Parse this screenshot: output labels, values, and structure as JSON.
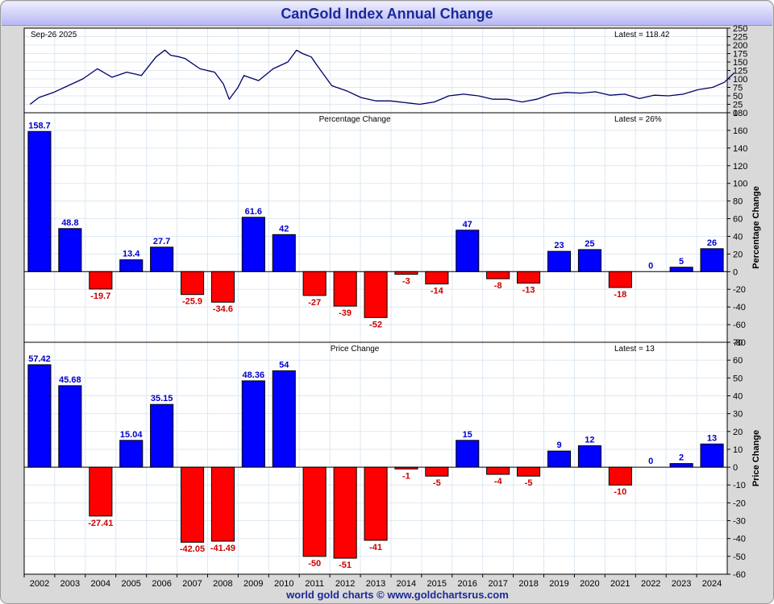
{
  "title": "CanGold Index Annual Change",
  "footer": "world gold charts © www.goldchartsrus.com",
  "colors": {
    "positive": "#0000ff",
    "negative": "#ff0000",
    "line": "#000066",
    "title_text": "#1a2a99",
    "label_positive": "#0000cc",
    "label_negative": "#cc0000"
  },
  "chart_data": [
    {
      "type": "line",
      "date_label": "Sep-26  2025",
      "latest_label": "Latest = 118.42",
      "ylim": [
        0,
        250
      ],
      "y_ticks": [
        0,
        25,
        50,
        75,
        100,
        125,
        150,
        175,
        200,
        225,
        250
      ],
      "x": [
        2001.7,
        2002.0,
        2002.5,
        2003.0,
        2003.5,
        2004.0,
        2004.5,
        2005.0,
        2005.5,
        2006.0,
        2006.3,
        2006.5,
        2006.8,
        2007.0,
        2007.5,
        2008.0,
        2008.3,
        2008.5,
        2008.8,
        2009.0,
        2009.5,
        2010.0,
        2010.5,
        2010.8,
        2011.0,
        2011.3,
        2011.5,
        2012.0,
        2012.5,
        2013.0,
        2013.5,
        2014.0,
        2014.5,
        2015.0,
        2015.5,
        2016.0,
        2016.5,
        2017.0,
        2017.5,
        2018.0,
        2018.5,
        2019.0,
        2019.5,
        2020.0,
        2020.5,
        2021.0,
        2021.5,
        2022.0,
        2022.5,
        2023.0,
        2023.5,
        2024.0,
        2024.5,
        2025.0,
        2025.4,
        2025.74
      ],
      "y": [
        25,
        45,
        60,
        80,
        100,
        130,
        105,
        120,
        110,
        165,
        185,
        170,
        165,
        160,
        130,
        120,
        85,
        40,
        75,
        110,
        95,
        130,
        150,
        185,
        175,
        165,
        140,
        80,
        65,
        45,
        35,
        35,
        30,
        25,
        32,
        50,
        55,
        50,
        40,
        40,
        32,
        40,
        55,
        60,
        58,
        62,
        52,
        55,
        42,
        52,
        50,
        55,
        68,
        75,
        90,
        118
      ]
    },
    {
      "type": "bar",
      "panel_label": "Percentage Change",
      "latest_label": "Latest = 26%",
      "ylabel": "Percentage Change",
      "ylim": [
        -80,
        180
      ],
      "y_ticks": [
        -80,
        -60,
        -40,
        -20,
        0,
        20,
        40,
        60,
        80,
        100,
        120,
        140,
        160,
        180
      ],
      "categories": [
        "2002",
        "2003",
        "2004",
        "2005",
        "2006",
        "2007",
        "2008",
        "2009",
        "2010",
        "2011",
        "2012",
        "2013",
        "2014",
        "2015",
        "2016",
        "2017",
        "2018",
        "2019",
        "2020",
        "2021",
        "2022",
        "2023",
        "2024"
      ],
      "values": [
        158.7,
        48.8,
        -19.7,
        13.4,
        27.7,
        -25.9,
        -34.6,
        61.6,
        42,
        -27,
        -39,
        -52,
        -3,
        -14,
        47,
        -8,
        -13,
        23,
        25,
        -18,
        0,
        5,
        26
      ],
      "labels": [
        "158.7",
        "48.8",
        "-19.7",
        "13.4",
        "27.7",
        "-25.9",
        "-34.6",
        "61.6",
        "42",
        "-27",
        "-39",
        "-52",
        "-3",
        "-14",
        "47",
        "-8",
        "-13",
        "23",
        "25",
        "-18",
        "0",
        "5",
        "26"
      ]
    },
    {
      "type": "bar",
      "panel_label": "Price Change",
      "latest_label": "Latest = 13",
      "ylabel": "Price Change",
      "ylim": [
        -60,
        70
      ],
      "y_ticks": [
        -60,
        -50,
        -40,
        -30,
        -20,
        -10,
        0,
        10,
        20,
        30,
        40,
        50,
        60,
        70
      ],
      "categories": [
        "2002",
        "2003",
        "2004",
        "2005",
        "2006",
        "2007",
        "2008",
        "2009",
        "2010",
        "2011",
        "2012",
        "2013",
        "2014",
        "2015",
        "2016",
        "2017",
        "2018",
        "2019",
        "2020",
        "2021",
        "2022",
        "2023",
        "2024"
      ],
      "values": [
        57.42,
        45.68,
        -27.41,
        15.04,
        35.15,
        -42.05,
        -41.49,
        48.36,
        54,
        -50,
        -51,
        -41,
        -1,
        -5,
        15,
        -4,
        -5,
        9,
        12,
        -10,
        0,
        2,
        13
      ],
      "labels": [
        "57.42",
        "45.68",
        "-27.41",
        "15.04",
        "35.15",
        "-42.05",
        "-41.49",
        "48.36",
        "54",
        "-50",
        "-51",
        "-41",
        "-1",
        "-5",
        "15",
        "-4",
        "-5",
        "9",
        "12",
        "-10",
        "0",
        "2",
        "13"
      ]
    }
  ]
}
